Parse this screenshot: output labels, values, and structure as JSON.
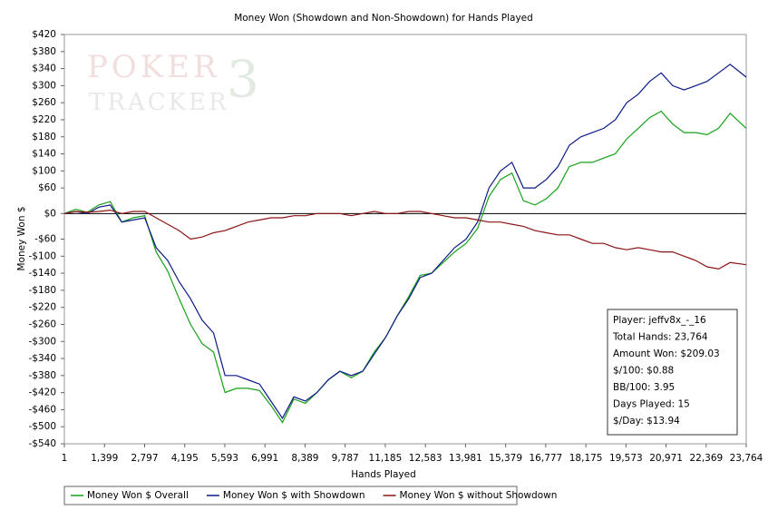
{
  "chart_data": {
    "type": "line",
    "title": "Money Won (Showdown and Non-Showdown) for Hands Played",
    "xlabel": "Hands Played",
    "ylabel": "Money Won $",
    "watermark": [
      "POKER",
      "TRACKER",
      "3"
    ],
    "x": [
      1,
      400,
      800,
      1200,
      1600,
      2000,
      2400,
      2800,
      3200,
      3600,
      4000,
      4400,
      4800,
      5200,
      5600,
      6000,
      6400,
      6800,
      7200,
      7600,
      8000,
      8400,
      8800,
      9200,
      9600,
      10000,
      10400,
      10800,
      11200,
      11600,
      12000,
      12400,
      12800,
      13200,
      13600,
      14000,
      14400,
      14800,
      15200,
      15600,
      16000,
      16400,
      16800,
      17200,
      17600,
      18000,
      18400,
      18800,
      19200,
      19600,
      20000,
      20400,
      20800,
      21200,
      21600,
      22000,
      22400,
      22800,
      23200,
      23764
    ],
    "series": [
      {
        "name": "Money Won $ Overall",
        "color": "#16a016",
        "values": [
          0,
          10,
          3,
          20,
          28,
          -20,
          -10,
          -5,
          -90,
          -135,
          -200,
          -260,
          -305,
          -325,
          -420,
          -410,
          -410,
          -415,
          -450,
          -490,
          -435,
          -445,
          -420,
          -390,
          -370,
          -385,
          -370,
          -325,
          -290,
          -240,
          -195,
          -145,
          -140,
          -115,
          -90,
          -70,
          -35,
          40,
          80,
          95,
          30,
          20,
          35,
          60,
          110,
          120,
          120,
          130,
          140,
          175,
          200,
          225,
          240,
          210,
          190,
          190,
          185,
          200,
          235,
          200
        ]
      },
      {
        "name": "Money Won $ with Showdown",
        "color": "#0b1a86",
        "values": [
          0,
          5,
          0,
          15,
          20,
          -20,
          -15,
          -10,
          -80,
          -110,
          -160,
          -200,
          -250,
          -280,
          -380,
          -380,
          -390,
          -400,
          -440,
          -480,
          -430,
          -440,
          -420,
          -390,
          -370,
          -380,
          -370,
          -330,
          -290,
          -240,
          -200,
          -150,
          -140,
          -110,
          -80,
          -60,
          -20,
          60,
          100,
          120,
          60,
          60,
          80,
          110,
          160,
          180,
          190,
          200,
          220,
          260,
          280,
          310,
          330,
          300,
          290,
          300,
          310,
          330,
          350,
          320
        ]
      },
      {
        "name": "Money Won $ without Showdown",
        "color": "#8b1414",
        "values": [
          0,
          5,
          3,
          5,
          8,
          0,
          5,
          5,
          -10,
          -25,
          -40,
          -60,
          -55,
          -45,
          -40,
          -30,
          -20,
          -15,
          -10,
          -10,
          -5,
          -5,
          0,
          0,
          0,
          -5,
          0,
          5,
          0,
          0,
          5,
          5,
          0,
          -5,
          -10,
          -10,
          -15,
          -20,
          -20,
          -25,
          -30,
          -40,
          -45,
          -50,
          -50,
          -60,
          -70,
          -70,
          -80,
          -85,
          -80,
          -85,
          -90,
          -90,
          -100,
          -110,
          -125,
          -130,
          -115,
          -120
        ]
      }
    ],
    "xlim": [
      1,
      23764
    ],
    "xticks": [
      1,
      {
        "value": 1399,
        "label": "1,399"
      },
      {
        "value": 2797,
        "label": "2,797"
      },
      {
        "value": 4195,
        "label": "4,195"
      },
      {
        "value": 5593,
        "label": "5,593"
      },
      {
        "value": 6991,
        "label": "6,991"
      },
      {
        "value": 8389,
        "label": "8,389"
      },
      {
        "value": 9787,
        "label": "9,787"
      },
      {
        "value": 11185,
        "label": "11,185"
      },
      {
        "value": 12583,
        "label": "12,583"
      },
      {
        "value": 13981,
        "label": "13,981"
      },
      {
        "value": 15379,
        "label": "15,379"
      },
      {
        "value": 16777,
        "label": "16,777"
      },
      {
        "value": 18175,
        "label": "18,175"
      },
      {
        "value": 19573,
        "label": "19,573"
      },
      {
        "value": 20971,
        "label": "20,971"
      },
      {
        "value": 22369,
        "label": "22,369"
      },
      {
        "value": 23764,
        "label": "23,764"
      }
    ],
    "ylim": [
      -540,
      420
    ],
    "yticks": [
      {
        "value": 420,
        "label": "$420"
      },
      {
        "value": 380,
        "label": "$380"
      },
      {
        "value": 340,
        "label": "$340"
      },
      {
        "value": 300,
        "label": "$300"
      },
      {
        "value": 260,
        "label": "$260"
      },
      {
        "value": 220,
        "label": "$220"
      },
      {
        "value": 180,
        "label": "$180"
      },
      {
        "value": 140,
        "label": "$140"
      },
      {
        "value": 100,
        "label": "$100"
      },
      {
        "value": 60,
        "label": "$60"
      },
      {
        "value": 0,
        "label": "$0"
      },
      {
        "value": -60,
        "label": "-$60"
      },
      {
        "value": -100,
        "label": "-$100"
      },
      {
        "value": -140,
        "label": "-$140"
      },
      {
        "value": -180,
        "label": "-$180"
      },
      {
        "value": -220,
        "label": "-$220"
      },
      {
        "value": -260,
        "label": "-$260"
      },
      {
        "value": -300,
        "label": "-$300"
      },
      {
        "value": -340,
        "label": "-$340"
      },
      {
        "value": -380,
        "label": "-$380"
      },
      {
        "value": -420,
        "label": "-$420"
      },
      {
        "value": -460,
        "label": "-$460"
      },
      {
        "value": -500,
        "label": "-$500"
      },
      {
        "value": -540,
        "label": "-$540"
      }
    ],
    "zero_line": true,
    "grid": false,
    "legend": "bottom",
    "info": [
      "Player: jeffv8x_-_16",
      "Total Hands: 23,764",
      "Amount Won: $209.03",
      "$/100: $0.88",
      "BB/100: 3.95",
      "Days Played: 15",
      "$/Day: $13.94"
    ]
  }
}
